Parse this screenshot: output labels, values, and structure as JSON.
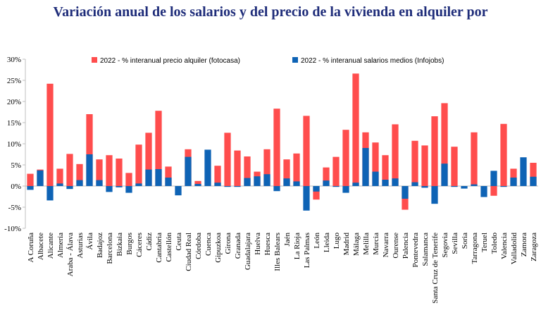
{
  "chart_data": {
    "type": "bar",
    "title": "Variación anual de los salarios y del precio de la vivienda en alquiler por",
    "xlabel": "",
    "ylabel": "",
    "ylim": [
      -10,
      30
    ],
    "yticks": [
      -10,
      -5,
      0,
      5,
      10,
      15,
      20,
      25,
      30
    ],
    "ytick_labels": [
      "-10%",
      "-5%",
      "0%",
      "5%",
      "10%",
      "15%",
      "20%",
      "25%",
      "30%"
    ],
    "categories": [
      "A Coruña",
      "Albacete",
      "Alicante",
      "Almería",
      "Araba - Álava",
      "Asturias",
      "Ávila",
      "Badajoz",
      "Barcelona",
      "Bizkaia",
      "Burgos",
      "Cáceres",
      "Cádiz",
      "Cantabria",
      "Castellón",
      "Ceuta",
      "Ciudad Real",
      "Córdoba",
      "Cuenca",
      "Gipuzkoa",
      "Girona",
      "Granada",
      "Guadalajara",
      "Huelva",
      "Huesca",
      "Illes Balears",
      "Jaén",
      "La Rioja",
      "Las Palmas",
      "León",
      "Lleida",
      "Lugo",
      "Madrid",
      "Málaga",
      "Melilla",
      "Murcia",
      "Navarra",
      "Ourense",
      "Palencia",
      "Pontevedra",
      "Salamanca",
      "Santa Cruz de Tenerife",
      "Segovia",
      "Sevilla",
      "Soria",
      "Tarragona",
      "Teruel",
      "Toledo",
      "Valencia",
      "Valladolid",
      "Zamora",
      "Zaragoza"
    ],
    "series": [
      {
        "name": "2022 -   % interanual  precio alquiler (fotocasa)",
        "color": "#ff4d4d",
        "values": [
          2.9,
          3.9,
          24.2,
          4.1,
          7.6,
          5.2,
          17.0,
          6.3,
          7.3,
          6.5,
          3.1,
          9.8,
          12.6,
          17.8,
          4.6,
          null,
          8.7,
          1.2,
          null,
          4.8,
          12.6,
          8.4,
          7.0,
          3.4,
          8.7,
          18.3,
          6.3,
          7.7,
          16.6,
          -3.2,
          4.4,
          6.9,
          13.3,
          26.6,
          12.7,
          10.3,
          7.3,
          14.6,
          -5.6,
          10.7,
          9.6,
          16.5,
          19.6,
          9.3,
          null,
          12.7,
          null,
          -2.3,
          14.7,
          4.1,
          null,
          5.5
        ]
      },
      {
        "name": "2022 -   % interanual   salarios medios (Infojobs)",
        "color": "#0e63b5",
        "values": [
          -0.9,
          3.7,
          -3.4,
          0.6,
          -0.7,
          1.4,
          7.5,
          1.4,
          -1.4,
          -0.3,
          -1.6,
          0.6,
          3.9,
          4.0,
          2.0,
          -2.2,
          6.9,
          0.5,
          8.6,
          0.8,
          -0.2,
          -0.2,
          1.9,
          2.3,
          2.8,
          -1.2,
          1.8,
          1.1,
          -5.8,
          -1.3,
          1.3,
          -0.2,
          -1.6,
          0.8,
          9.0,
          3.4,
          1.5,
          1.8,
          -3.0,
          0.9,
          -0.4,
          -4.2,
          5.3,
          -0.2,
          -0.6,
          0.4,
          -2.6,
          3.6,
          -0.2,
          2.0,
          6.8,
          2.2
        ]
      }
    ],
    "legend_position": "top-center",
    "grid": false
  }
}
